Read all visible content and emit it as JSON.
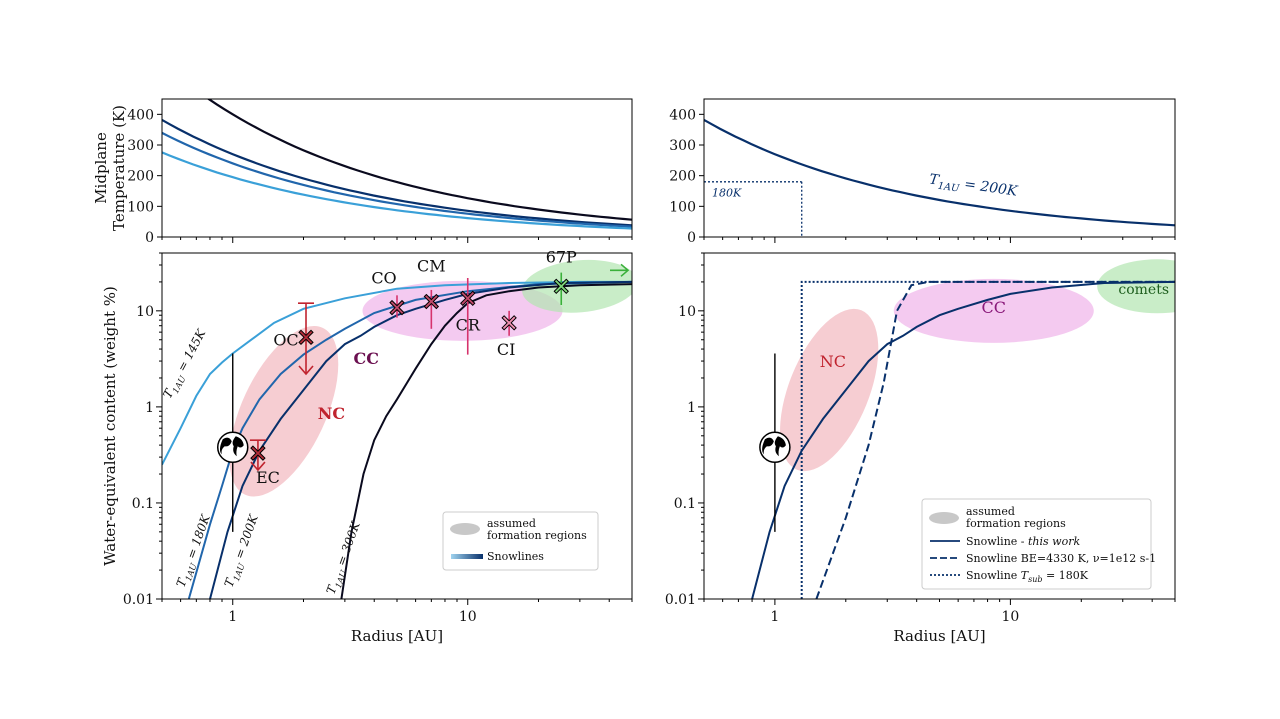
{
  "chart_data": [
    {
      "id": "tl",
      "type": "line",
      "ylabel": "Midplane\nTemperature (K)",
      "xscale": "log",
      "xlim": [
        0.5,
        50
      ],
      "ylim": [
        0,
        450
      ],
      "yticks": [
        0,
        100,
        200,
        300,
        400
      ],
      "series": [
        {
          "T1au": 400,
          "color": "#0a0a1e"
        },
        {
          "T1au": 270,
          "color": "#08306b"
        },
        {
          "T1au": 240,
          "color": "#2166ac"
        },
        {
          "T1au": 195,
          "color": "#3aa0d8"
        }
      ]
    },
    {
      "id": "tr",
      "type": "line",
      "xscale": "log",
      "xlim": [
        0.5,
        50
      ],
      "ylim": [
        0,
        450
      ],
      "yticks": [
        0,
        100,
        200,
        300,
        400
      ],
      "series": [
        {
          "T1au": 270,
          "color": "#08306b"
        }
      ],
      "annotations": [
        {
          "text": "T_1AU = 200K",
          "x": 4.5,
          "y": 175
        },
        {
          "text": "180K",
          "x": 0.52,
          "y": 158
        }
      ],
      "guide": {
        "x": 1.3,
        "y": 180
      }
    },
    {
      "id": "bl",
      "type": "line",
      "xlabel": "Radius [AU]",
      "ylabel": "Water-equivalent content (weight %)",
      "xscale": "log",
      "yscale": "log",
      "xlim": [
        0.5,
        50
      ],
      "ylim": [
        0.01,
        40
      ],
      "xticks": [
        {
          "v": 1,
          "label": "1"
        },
        {
          "v": 10,
          "label": "10"
        }
      ],
      "yticks": [
        {
          "v": 0.01,
          "label": "0.01"
        },
        {
          "v": 0.1,
          "label": "0.1"
        },
        {
          "v": 1,
          "label": "1"
        },
        {
          "v": 10,
          "label": "10"
        }
      ],
      "series": [
        {
          "label": "T_1AU = 145K",
          "color": "#3aa0d8",
          "x": [
            0.5,
            0.6,
            0.7,
            0.8,
            0.9,
            1.0,
            1.2,
            1.5,
            2.0,
            3.0,
            5.0,
            8.0,
            15,
            30,
            50
          ],
          "y": [
            0.25,
            0.6,
            1.3,
            2.2,
            2.9,
            3.6,
            5.0,
            7.5,
            10.5,
            13.5,
            17,
            18.5,
            19.5,
            20,
            20
          ]
        },
        {
          "label": "T_1AU = 180K",
          "color": "#2166ac",
          "x": [
            0.65,
            0.8,
            0.9,
            1.0,
            1.1,
            1.3,
            1.6,
            2.0,
            2.5,
            3.0,
            4.0,
            6.0,
            10,
            20,
            50
          ],
          "y": [
            0.01,
            0.06,
            0.15,
            0.35,
            0.6,
            1.2,
            2.2,
            3.5,
            5.0,
            6.5,
            9.5,
            13,
            16,
            19,
            20
          ]
        },
        {
          "label": "T_1AU = 200K",
          "color": "#08306b",
          "x": [
            0.8,
            0.95,
            1.1,
            1.3,
            1.6,
            2.0,
            2.5,
            3.0,
            3.5,
            4.0,
            5.0,
            6.0,
            8.0,
            10,
            15,
            25,
            50
          ],
          "y": [
            0.01,
            0.05,
            0.15,
            0.35,
            0.75,
            1.5,
            3.0,
            4.5,
            5.5,
            6.8,
            9.0,
            10.5,
            13,
            15,
            17.5,
            19.5,
            20
          ]
        },
        {
          "label": "T_1AU = 300K",
          "color": "#0a0a1e",
          "x": [
            2.9,
            3.2,
            3.6,
            4.0,
            4.5,
            5.0,
            6.0,
            7.0,
            8.0,
            9.0,
            10,
            12,
            15,
            20,
            30,
            50
          ],
          "y": [
            0.01,
            0.05,
            0.2,
            0.45,
            0.8,
            1.2,
            2.5,
            4.5,
            7.0,
            9.5,
            12,
            14.5,
            16,
            17.5,
            18.5,
            19
          ]
        }
      ],
      "regions": [
        {
          "label": "NC",
          "x": 1.65,
          "y": 0.9,
          "color": "#f2b8bf"
        },
        {
          "label": "CC",
          "x": 9.5,
          "y": 10,
          "color": "#f0b3ea"
        },
        {
          "label": "",
          "x": 30,
          "y": 18,
          "color": "#b2e6b0"
        }
      ],
      "points": [
        {
          "label": "OC",
          "x": 2.05,
          "y": 5.3,
          "err_lo": 2.2,
          "err_hi": 12
        },
        {
          "label": "EC",
          "x": 1.28,
          "y": 0.33,
          "err_lo": 0.22,
          "err_hi": 0.45
        },
        {
          "label": "CO",
          "x": 5.0,
          "y": 10.8,
          "err_lo": 8.5,
          "err_hi": 14.5
        },
        {
          "label": "CM",
          "x": 7.0,
          "y": 12.5,
          "err_lo": 6.5,
          "err_hi": 16.5
        },
        {
          "label": "CR",
          "x": 10.0,
          "y": 13.5,
          "err_lo": 3.5,
          "err_hi": 22
        },
        {
          "label": "CI",
          "x": 15.0,
          "y": 7.5,
          "err_lo": 5.5,
          "err_hi": 10
        },
        {
          "label": "67P",
          "x": 25.0,
          "y": 18,
          "err_lo": 11.5,
          "err_hi": 25
        }
      ],
      "earth": {
        "x": 1.0,
        "y": 0.38,
        "range": [
          0.05,
          3.6
        ]
      },
      "legend": {
        "position": "lower-right",
        "regions_label": "assumed\nformation regions",
        "lines_label": "Snowlines"
      }
    },
    {
      "id": "br",
      "type": "line",
      "xlabel": "Radius [AU]",
      "xscale": "log",
      "yscale": "log",
      "xlim": [
        0.5,
        50
      ],
      "ylim": [
        0.01,
        40
      ],
      "xticks": [
        {
          "v": 1,
          "label": "1"
        },
        {
          "v": 10,
          "label": "10"
        }
      ],
      "yticks": [
        {
          "v": 0.01,
          "label": "0.01"
        },
        {
          "v": 0.1,
          "label": "0.1"
        },
        {
          "v": 1,
          "label": "1"
        },
        {
          "v": 10,
          "label": "10"
        }
      ],
      "series": [
        {
          "label": "Snowline - this work",
          "style": "solid",
          "color": "#08306b",
          "x": [
            0.8,
            0.95,
            1.1,
            1.3,
            1.6,
            2.0,
            2.5,
            3.0,
            3.5,
            4.0,
            5.0,
            6.0,
            8.0,
            10,
            15,
            25,
            50
          ],
          "y": [
            0.01,
            0.05,
            0.15,
            0.35,
            0.75,
            1.5,
            3.0,
            4.5,
            5.5,
            6.8,
            9.0,
            10.5,
            13,
            15,
            17.5,
            19.5,
            20
          ]
        },
        {
          "label": "Snowline BE=4330 K, ν=1e12 s-1",
          "style": "dashed",
          "color": "#08306b",
          "x": [
            1.5,
            2.0,
            2.5,
            2.9,
            3.3,
            3.8,
            4.5,
            10,
            50
          ],
          "y": [
            0.01,
            0.07,
            0.4,
            1.8,
            10,
            18.5,
            20,
            20,
            20
          ]
        },
        {
          "label": "Snowline T_sub = 180K",
          "style": "dotted",
          "color": "#08306b",
          "x": [
            1.3,
            1.3,
            50
          ],
          "y": [
            0.01,
            20,
            20
          ]
        }
      ],
      "regions": [
        {
          "label": "NC",
          "x": 1.7,
          "y": 1.5,
          "color": "#f2b8bf"
        },
        {
          "label": "CC",
          "x": 8.5,
          "y": 10,
          "color": "#f0b3ea"
        },
        {
          "label": "comets",
          "x": 42,
          "y": 18,
          "color": "#b2e6b0"
        }
      ],
      "earth": {
        "x": 1.0,
        "y": 0.38,
        "range": [
          0.05,
          3.6
        ]
      },
      "legend": {
        "position": "lower-right",
        "regions_label": "assumed\nformation regions"
      }
    }
  ]
}
